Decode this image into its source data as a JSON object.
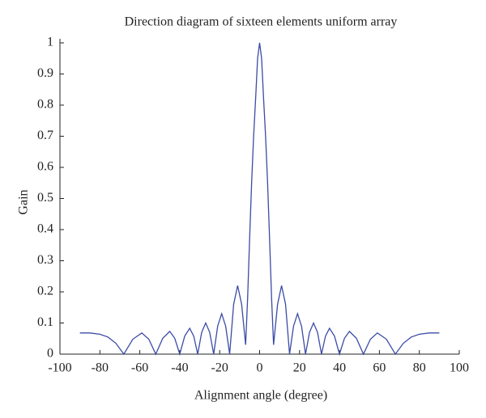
{
  "chart_data": {
    "type": "line",
    "title": "Direction diagram of sixteen elements uniform array",
    "xlabel": "Alignment angle (degree)",
    "ylabel": "Gain",
    "x": [
      -90,
      -85,
      -80,
      -76,
      -72,
      -68,
      -63.5,
      -59,
      -55.5,
      -52,
      -48.5,
      -45,
      -42.5,
      -40,
      -37.5,
      -35,
      -33,
      -31,
      -29,
      -27,
      -25,
      -23,
      -21,
      -19,
      -17,
      -15,
      -13,
      -11,
      -9,
      -7,
      -6,
      -5,
      -4,
      -3,
      -2,
      -1,
      0,
      1,
      2,
      3,
      4,
      5,
      6,
      7,
      9,
      11,
      13,
      15,
      17,
      19,
      21,
      23,
      25,
      27,
      29,
      31,
      33,
      35,
      37.5,
      40,
      42.5,
      45,
      48.5,
      52,
      55.5,
      59,
      63.5,
      68,
      72,
      76,
      80,
      85,
      90
    ],
    "values": [
      0.068,
      0.068,
      0.064,
      0.055,
      0.035,
      0,
      0.048,
      0.068,
      0.048,
      0,
      0.051,
      0.073,
      0.051,
      0,
      0.058,
      0.083,
      0.058,
      0,
      0.07,
      0.1,
      0.07,
      0,
      0.09,
      0.13,
      0.09,
      0,
      0.16,
      0.22,
      0.16,
      0.03,
      0.18,
      0.37,
      0.55,
      0.7,
      0.82,
      0.95,
      1,
      0.95,
      0.82,
      0.7,
      0.55,
      0.37,
      0.18,
      0.03,
      0.16,
      0.22,
      0.16,
      0,
      0.09,
      0.13,
      0.09,
      0,
      0.07,
      0.1,
      0.07,
      0,
      0.058,
      0.083,
      0.058,
      0,
      0.051,
      0.073,
      0.051,
      0,
      0.048,
      0.068,
      0.048,
      0,
      0.035,
      0.055,
      0.064,
      0.068,
      0.068
    ],
    "color": "#3b4ba6",
    "xlim": [
      -100,
      100
    ],
    "xticks": [
      -100,
      -80,
      -60,
      -40,
      -20,
      0,
      20,
      40,
      60,
      80,
      100
    ],
    "ylim": [
      0,
      1
    ],
    "yticks": [
      0,
      0.1,
      0.2,
      0.3,
      0.4,
      0.5,
      0.6,
      0.7,
      0.8,
      0.9,
      1
    ],
    "grid": false
  }
}
